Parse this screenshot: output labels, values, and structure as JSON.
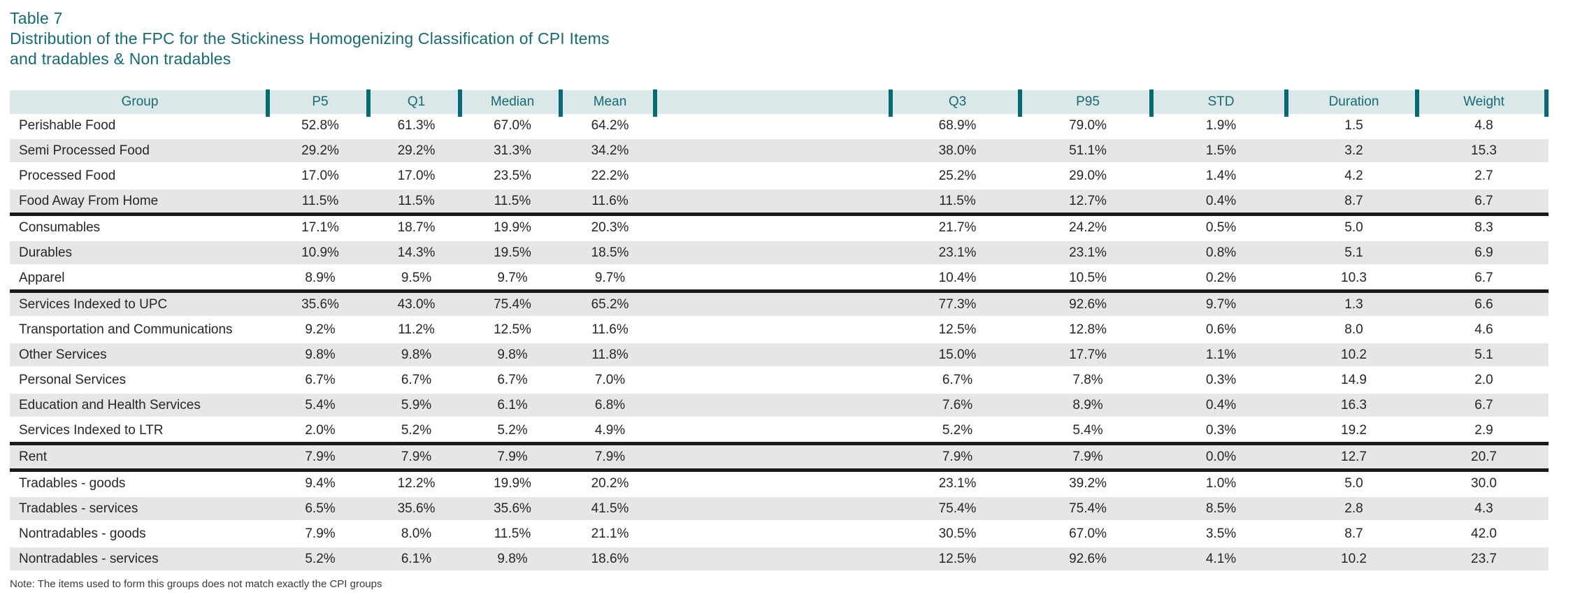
{
  "header": {
    "table_number": "Table 7",
    "title_line1": "Distribution of the FPC for the Stickiness Homogenizing Classification of CPI Items",
    "title_line2": "and tradables & Non tradables"
  },
  "note": "Note: The items used to form this groups does not match exactly the CPI groups",
  "colors": {
    "accent_teal": "#076a73",
    "title_text": "#156a74",
    "header_bg": "#dbe8e9",
    "row_alt_bg": "#e6e6e6",
    "section_divider": "#1a1a1a"
  },
  "chart_data": {
    "type": "table",
    "title": "Table 7 — Distribution of the FPC for the Stickiness Homogenizing Classification of CPI Items and tradables & Non tradables",
    "columns": [
      "Group",
      "P5",
      "Q1",
      "Median",
      "Mean",
      "",
      "Q3",
      "P95",
      "STD",
      "Duration",
      "Weight"
    ],
    "rows": [
      [
        "Perishable Food",
        "52.8%",
        "61.3%",
        "67.0%",
        "64.2%",
        "",
        "68.9%",
        "79.0%",
        "1.9%",
        "1.5",
        "4.8"
      ],
      [
        "Semi Processed Food",
        "29.2%",
        "29.2%",
        "31.3%",
        "34.2%",
        "",
        "38.0%",
        "51.1%",
        "1.5%",
        "3.2",
        "15.3"
      ],
      [
        "Processed Food",
        "17.0%",
        "17.0%",
        "23.5%",
        "22.2%",
        "",
        "25.2%",
        "29.0%",
        "1.4%",
        "4.2",
        "2.7"
      ],
      [
        "Food Away From Home",
        "11.5%",
        "11.5%",
        "11.5%",
        "11.6%",
        "",
        "11.5%",
        "12.7%",
        "0.4%",
        "8.7",
        "6.7"
      ],
      [
        "Consumables",
        "17.1%",
        "18.7%",
        "19.9%",
        "20.3%",
        "",
        "21.7%",
        "24.2%",
        "0.5%",
        "5.0",
        "8.3"
      ],
      [
        "Durables",
        "10.9%",
        "14.3%",
        "19.5%",
        "18.5%",
        "",
        "23.1%",
        "23.1%",
        "0.8%",
        "5.1",
        "6.9"
      ],
      [
        "Apparel",
        "8.9%",
        "9.5%",
        "9.7%",
        "9.7%",
        "",
        "10.4%",
        "10.5%",
        "0.2%",
        "10.3",
        "6.7"
      ],
      [
        "Services Indexed to UPC",
        "35.6%",
        "43.0%",
        "75.4%",
        "65.2%",
        "",
        "77.3%",
        "92.6%",
        "9.7%",
        "1.3",
        "6.6"
      ],
      [
        "Transportation and Communications",
        "9.2%",
        "11.2%",
        "12.5%",
        "11.6%",
        "",
        "12.5%",
        "12.8%",
        "0.6%",
        "8.0",
        "4.6"
      ],
      [
        "Other Services",
        "9.8%",
        "9.8%",
        "9.8%",
        "11.8%",
        "",
        "15.0%",
        "17.7%",
        "1.1%",
        "10.2",
        "5.1"
      ],
      [
        "Personal Services",
        "6.7%",
        "6.7%",
        "6.7%",
        "7.0%",
        "",
        "6.7%",
        "7.8%",
        "0.3%",
        "14.9",
        "2.0"
      ],
      [
        "Education and Health Services",
        "5.4%",
        "5.9%",
        "6.1%",
        "6.8%",
        "",
        "7.6%",
        "8.9%",
        "0.4%",
        "16.3",
        "6.7"
      ],
      [
        "Services Indexed to LTR",
        "2.0%",
        "5.2%",
        "5.2%",
        "4.9%",
        "",
        "5.2%",
        "5.4%",
        "0.3%",
        "19.2",
        "2.9"
      ],
      [
        "Rent",
        "7.9%",
        "7.9%",
        "7.9%",
        "7.9%",
        "",
        "7.9%",
        "7.9%",
        "0.0%",
        "12.7",
        "20.7"
      ],
      [
        "Tradables - goods",
        "9.4%",
        "12.2%",
        "19.9%",
        "20.2%",
        "",
        "23.1%",
        "39.2%",
        "1.0%",
        "5.0",
        "30.0"
      ],
      [
        "Tradables - services",
        "6.5%",
        "35.6%",
        "35.6%",
        "41.5%",
        "",
        "75.4%",
        "75.4%",
        "8.5%",
        "2.8",
        "4.3"
      ],
      [
        "Nontradables - goods",
        "7.9%",
        "8.0%",
        "11.5%",
        "21.1%",
        "",
        "30.5%",
        "67.0%",
        "3.5%",
        "8.7",
        "42.0"
      ],
      [
        "Nontradables - services",
        "5.2%",
        "6.1%",
        "9.8%",
        "18.6%",
        "",
        "12.5%",
        "92.6%",
        "4.1%",
        "10.2",
        "23.7"
      ]
    ],
    "section_breaks_after_rows": [
      3,
      6,
      12,
      13
    ],
    "layout_hints": {
      "grid": "none",
      "header_separators": "vertical teal bars",
      "row_striping": "alternating white / light gray"
    }
  }
}
